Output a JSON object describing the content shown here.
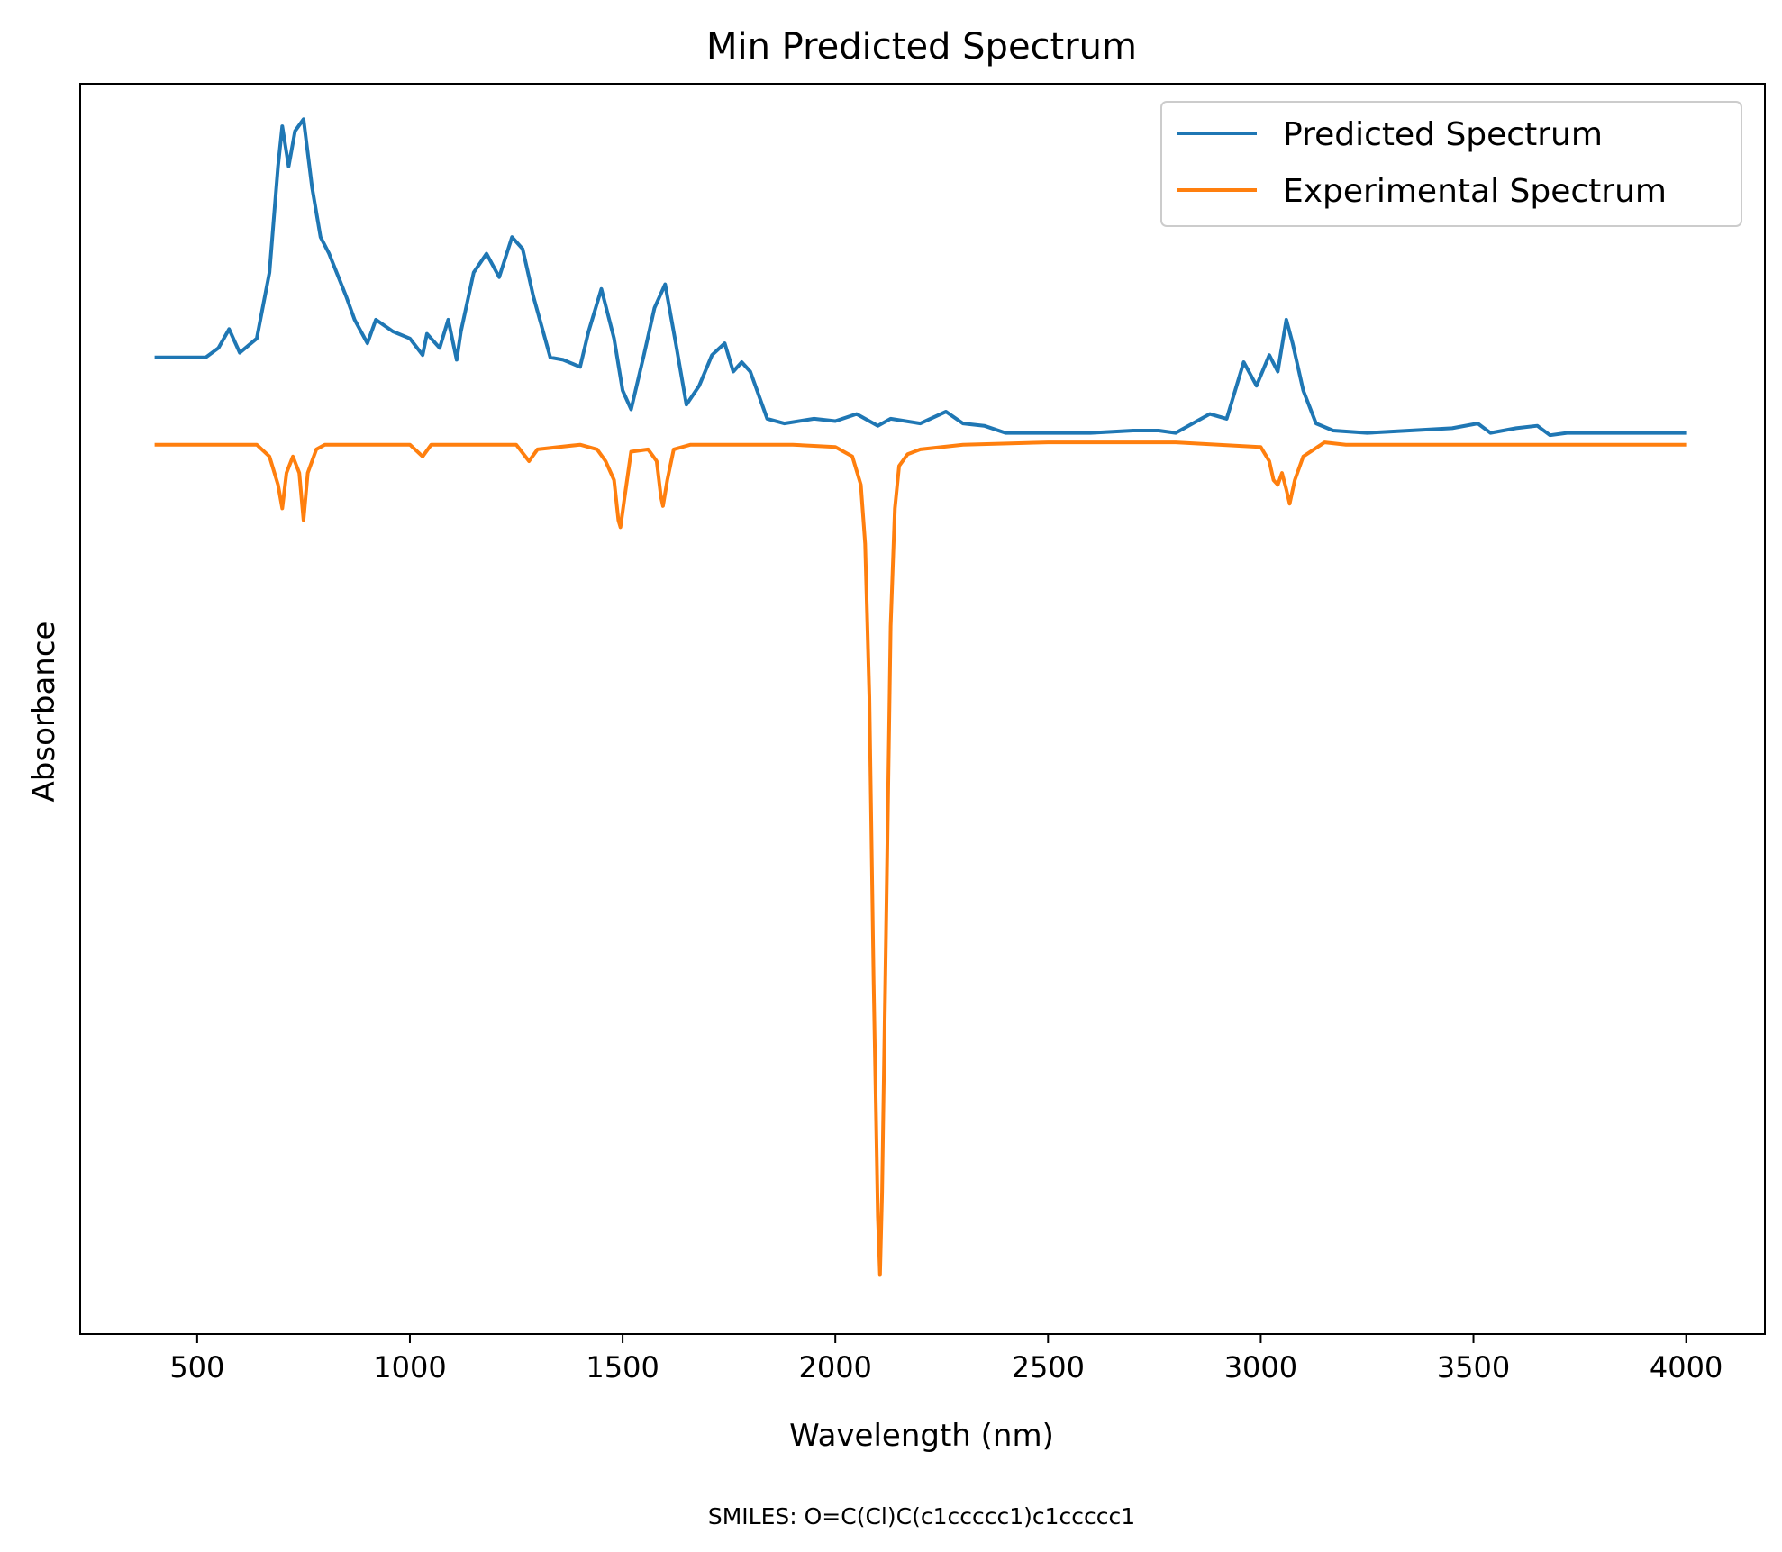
{
  "chart_data": {
    "type": "line",
    "title": "Min Predicted Spectrum",
    "xlabel": "Wavelength (nm)",
    "ylabel": "Absorbance",
    "xlim": [
      225,
      4185
    ],
    "ylim": [
      -0.33,
      0.2
    ],
    "xticks": [
      500,
      1000,
      1500,
      2000,
      2500,
      3000,
      3500,
      4000
    ],
    "xtick_labels": [
      "500",
      "1000",
      "1500",
      "2000",
      "2500",
      "3000",
      "3500",
      "4000"
    ],
    "yticks_shown": false,
    "grid": false,
    "legend": {
      "placement": "top-right"
    },
    "footnote": "SMILES: O=C(Cl)C(c1ccccc1)c1ccccc1",
    "series": [
      {
        "name": "Predicted Spectrum",
        "color": "#1f77b4",
        "x": [
          400,
          520,
          550,
          575,
          600,
          640,
          670,
          690,
          700,
          715,
          730,
          750,
          770,
          790,
          810,
          850,
          870,
          900,
          920,
          960,
          1000,
          1030,
          1040,
          1070,
          1090,
          1110,
          1120,
          1150,
          1180,
          1210,
          1240,
          1265,
          1290,
          1330,
          1360,
          1400,
          1420,
          1450,
          1480,
          1500,
          1520,
          1550,
          1575,
          1600,
          1625,
          1650,
          1680,
          1710,
          1740,
          1760,
          1780,
          1800,
          1840,
          1880,
          1950,
          2000,
          2050,
          2100,
          2130,
          2200,
          2260,
          2300,
          2350,
          2400,
          2500,
          2600,
          2700,
          2760,
          2800,
          2850,
          2880,
          2920,
          2960,
          2990,
          3020,
          3040,
          3060,
          3075,
          3100,
          3130,
          3170,
          3250,
          3350,
          3450,
          3510,
          3540,
          3600,
          3650,
          3680,
          3720,
          3800,
          3900,
          4000
        ],
        "y": [
          0.084,
          0.084,
          0.088,
          0.096,
          0.086,
          0.092,
          0.12,
          0.165,
          0.182,
          0.165,
          0.18,
          0.185,
          0.156,
          0.135,
          0.128,
          0.11,
          0.1,
          0.09,
          0.1,
          0.095,
          0.092,
          0.085,
          0.094,
          0.088,
          0.1,
          0.083,
          0.095,
          0.12,
          0.128,
          0.118,
          0.135,
          0.13,
          0.11,
          0.084,
          0.083,
          0.08,
          0.095,
          0.113,
          0.092,
          0.07,
          0.062,
          0.085,
          0.105,
          0.115,
          0.09,
          0.064,
          0.072,
          0.085,
          0.09,
          0.078,
          0.082,
          0.078,
          0.058,
          0.056,
          0.058,
          0.057,
          0.06,
          0.055,
          0.058,
          0.056,
          0.061,
          0.056,
          0.055,
          0.052,
          0.052,
          0.052,
          0.053,
          0.053,
          0.052,
          0.057,
          0.06,
          0.058,
          0.082,
          0.072,
          0.085,
          0.078,
          0.1,
          0.09,
          0.07,
          0.056,
          0.053,
          0.052,
          0.053,
          0.054,
          0.056,
          0.052,
          0.054,
          0.055,
          0.051,
          0.052,
          0.052,
          0.052,
          0.052
        ]
      },
      {
        "name": "Experimental Spectrum",
        "color": "#ff7f0e",
        "x": [
          400,
          640,
          670,
          690,
          700,
          710,
          725,
          740,
          750,
          760,
          780,
          800,
          1000,
          1030,
          1050,
          1100,
          1250,
          1280,
          1300,
          1400,
          1440,
          1460,
          1480,
          1490,
          1495,
          1505,
          1520,
          1560,
          1580,
          1590,
          1595,
          1605,
          1620,
          1660,
          1700,
          1800,
          1900,
          2000,
          2040,
          2060,
          2070,
          2080,
          2090,
          2100,
          2105,
          2110,
          2120,
          2130,
          2140,
          2150,
          2170,
          2200,
          2300,
          2500,
          2800,
          3000,
          3020,
          3030,
          3040,
          3050,
          3060,
          3068,
          3080,
          3100,
          3150,
          3200,
          3300,
          4000
        ],
        "y": [
          0.047,
          0.047,
          0.042,
          0.03,
          0.02,
          0.035,
          0.042,
          0.035,
          0.015,
          0.035,
          0.045,
          0.047,
          0.047,
          0.042,
          0.047,
          0.047,
          0.047,
          0.04,
          0.045,
          0.047,
          0.045,
          0.04,
          0.032,
          0.015,
          0.012,
          0.025,
          0.044,
          0.045,
          0.04,
          0.025,
          0.021,
          0.032,
          0.045,
          0.047,
          0.047,
          0.047,
          0.047,
          0.046,
          0.042,
          0.03,
          0.005,
          -0.06,
          -0.18,
          -0.28,
          -0.305,
          -0.27,
          -0.15,
          -0.03,
          0.02,
          0.038,
          0.043,
          0.045,
          0.047,
          0.048,
          0.048,
          0.046,
          0.04,
          0.032,
          0.03,
          0.035,
          0.028,
          0.022,
          0.032,
          0.042,
          0.048,
          0.047,
          0.047,
          0.047
        ]
      }
    ]
  }
}
